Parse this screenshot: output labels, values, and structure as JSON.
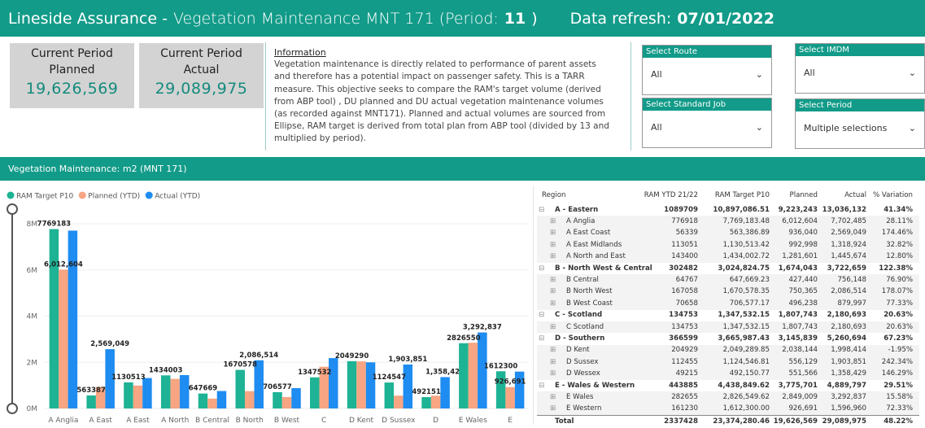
{
  "header": {
    "brand": "Lineside Assurance -",
    "subject": "Vegetation Maintenance MNT 171 (Period:",
    "period": "11",
    "close": ")",
    "refresh_label": "Data refresh:",
    "refresh_date": "07/01/2022"
  },
  "kpis": [
    {
      "label": "Current Period Planned",
      "value": "19,626,569"
    },
    {
      "label": "Current Period Actual",
      "value": "29,089,975"
    }
  ],
  "information": {
    "title": "Information",
    "text": "Vegetation maintenance is directly related to performance of parent assets and therefore has a potential impact on passenger safety. This is a TARR measure. This objective seeks to compare the RAM's target volume (derived from ABP tool) , DU planned and DU actual vegetation maintenance volumes (as recorded against MNT171). Planned and actual volumes are sourced from Ellipse, RAM target is derived from total plan from ABP tool (divided by 13 and multiplied by period)."
  },
  "filters": [
    {
      "label": "Select Route",
      "value": "All"
    },
    {
      "label": "Select IMDM",
      "value": "All"
    },
    {
      "label": "Select Standard Job",
      "value": "All"
    },
    {
      "label": "Select Period",
      "value": "Multiple selections"
    }
  ],
  "section_title": "Vegetation Maintenance: m2 (MNT 171)",
  "chart_data": {
    "type": "bar",
    "categories": [
      "A Anglia",
      "A East",
      "A East",
      "A North",
      "B Central",
      "B North",
      "B West",
      "C",
      "D Kent",
      "D Sussex",
      "D",
      "E Wales",
      "E"
    ],
    "series": [
      {
        "name": "RAM Target P10",
        "color": "#1db394",
        "values": [
          7769183.48,
          563386.89,
          1130513.42,
          1434002.72,
          647669.23,
          1670578.35,
          706577.17,
          1347532.15,
          2049289.85,
          1124546.81,
          492150.77,
          2826549.62,
          1612300.0
        ],
        "value_labels": [
          "7769183",
          "563387",
          "1130513",
          "1434003",
          "647669",
          "1670578",
          "706577",
          "1347532",
          "2049290",
          "1124547",
          "492151",
          "2826550",
          "1612300"
        ]
      },
      {
        "name": "Planned (YTD)",
        "color": "#f7a582",
        "values": [
          6012604,
          936040,
          992998,
          1281601,
          427440,
          750365,
          496238,
          1807743,
          2038144,
          556129,
          551566,
          2849009,
          926691
        ],
        "value_labels": [
          "6,012,604",
          null,
          null,
          null,
          null,
          null,
          null,
          null,
          null,
          null,
          null,
          null,
          "926,691"
        ]
      },
      {
        "name": "Actual (YTD)",
        "color": "#1e8cf0",
        "values": [
          7702485,
          2569049,
          1318924,
          1445674,
          756148,
          2086514,
          879997,
          2180693,
          1998414,
          1903851,
          1358429,
          3292837,
          1596960
        ],
        "value_labels": [
          null,
          "2,569,049",
          null,
          null,
          null,
          "2,086,514",
          null,
          null,
          null,
          "1,903,851",
          "1,358,429",
          "3,292,837",
          null
        ]
      }
    ],
    "ylim": [
      0,
      8000000
    ],
    "yticks": [
      {
        "value": 0,
        "label": "0M"
      },
      {
        "value": 2000000,
        "label": "2M"
      },
      {
        "value": 4000000,
        "label": "4M"
      },
      {
        "value": 6000000,
        "label": "6M"
      },
      {
        "value": 8000000,
        "label": "8M"
      }
    ],
    "legend": "top-left"
  },
  "table": {
    "columns": [
      "Region",
      "RAM YTD 21/22",
      "RAM Target P10",
      "Planned",
      "Actual",
      "% Variation"
    ],
    "groups": [
      {
        "row": [
          "A - Eastern",
          "1089709",
          "10,897,086.51",
          "9,223,243",
          "13,036,132",
          "41.34%"
        ],
        "children": [
          [
            "A Anglia",
            "776918",
            "7,769,183.48",
            "6,012,604",
            "7,702,485",
            "28.11%"
          ],
          [
            "A East Coast",
            "56339",
            "563,386.89",
            "936,040",
            "2,569,049",
            "174.46%"
          ],
          [
            "A East Midlands",
            "113051",
            "1,130,513.42",
            "992,998",
            "1,318,924",
            "32.82%"
          ],
          [
            "A North and East",
            "143400",
            "1,434,002.72",
            "1,281,601",
            "1,445,674",
            "12.80%"
          ]
        ]
      },
      {
        "row": [
          "B - North West & Central",
          "302482",
          "3,024,824.75",
          "1,674,043",
          "3,722,659",
          "122.38%"
        ],
        "children": [
          [
            "B Central",
            "64767",
            "647,669.23",
            "427,440",
            "756,148",
            "76.90%"
          ],
          [
            "B North West",
            "167058",
            "1,670,578.35",
            "750,365",
            "2,086,514",
            "178.07%"
          ],
          [
            "B West Coast",
            "70658",
            "706,577.17",
            "496,238",
            "879,997",
            "77.33%"
          ]
        ]
      },
      {
        "row": [
          "C - Scotland",
          "134753",
          "1,347,532.15",
          "1,807,743",
          "2,180,693",
          "20.63%"
        ],
        "children": [
          [
            "C Scotland",
            "134753",
            "1,347,532.15",
            "1,807,743",
            "2,180,693",
            "20.63%"
          ]
        ]
      },
      {
        "row": [
          "D - Southern",
          "366599",
          "3,665,987.43",
          "3,145,839",
          "5,260,694",
          "67.23%"
        ],
        "children": [
          [
            "D Kent",
            "204929",
            "2,049,289.85",
            "2,038,144",
            "1,998,414",
            "-1.95%"
          ],
          [
            "D Sussex",
            "112455",
            "1,124,546.81",
            "556,129",
            "1,903,851",
            "242.34%"
          ],
          [
            "D Wessex",
            "49215",
            "492,150.77",
            "551,566",
            "1,358,429",
            "146.29%"
          ]
        ]
      },
      {
        "row": [
          "E - Wales & Western",
          "443885",
          "4,438,849.62",
          "3,775,701",
          "4,889,797",
          "29.51%"
        ],
        "children": [
          [
            "E Wales",
            "282655",
            "2,826,549.62",
            "2,849,009",
            "3,292,837",
            "15.58%"
          ],
          [
            "E Western",
            "161230",
            "1,612,300.00",
            "926,691",
            "1,596,960",
            "72.33%"
          ]
        ]
      }
    ],
    "total": [
      "Total",
      "2337428",
      "23,374,280.46",
      "19,626,569",
      "29,089,975",
      "48.22%"
    ]
  }
}
